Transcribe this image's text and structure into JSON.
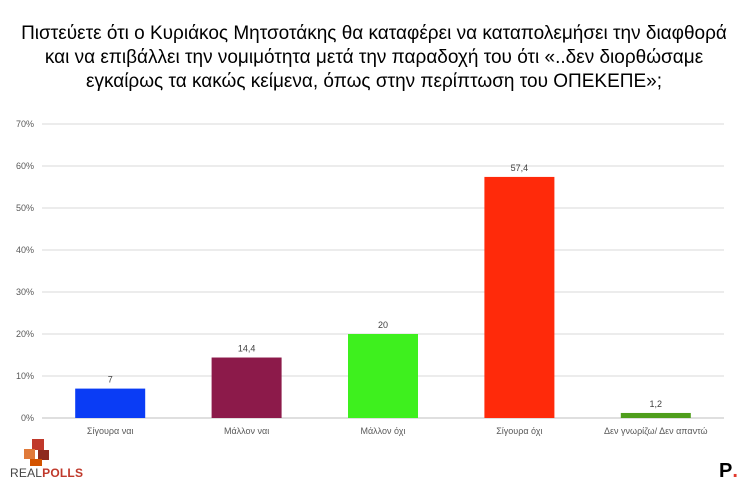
{
  "title_lines": [
    "Πιστεύετε ότι ο Κυριάκος Μητσοτάκης θα καταφέρει να καταπολεμήσει την διαφθορά",
    "και να επιβάλλει την νομιμότητα μετά την παραδοχή του ότι «..δεν διορθώσαμε",
    "εγκαίρως τα κακώς κείμενα, όπως στην περίπτωση του ΟΠΕΚΕΠΕ»;"
  ],
  "chart_data": {
    "type": "bar",
    "title": "Πιστεύετε ότι ο Κυριάκος Μητσοτάκης θα καταφέρει να καταπολεμήσει την διαφθορά και να επιβάλλει την νομιμότητα μετά την παραδοχή του ότι «..δεν διορθώσαμε εγκαίρως τα κακώς κείμενα, όπως στην περίπτωση του ΟΠΕΚΕΠΕ»;",
    "categories": [
      "Σίγουρα ναι",
      "Μάλλον ναι",
      "Μάλλον όχι",
      "Σίγουρα όχι",
      "Δεν γνωρίζω/ Δεν απαντώ"
    ],
    "values": [
      7,
      14.4,
      20,
      57.4,
      1.2
    ],
    "data_labels": [
      "7",
      "14,4",
      "20",
      "57,4",
      "1,2"
    ],
    "colors": [
      "#0a3cf5",
      "#8c1a4a",
      "#3ef01e",
      "#ff2a0a",
      "#4f9e1c"
    ],
    "ylim": [
      0,
      70
    ],
    "yticks": [
      0,
      10,
      20,
      30,
      40,
      50,
      60,
      70
    ],
    "ytick_labels": [
      "0%",
      "10%",
      "20%",
      "30%",
      "40%",
      "50%",
      "60%",
      "70%"
    ],
    "grid": true,
    "xlabel": "",
    "ylabel": ""
  },
  "logo": {
    "left": "REAL",
    "right": "POLLS"
  },
  "brand": {
    "letter": "P",
    "dot": "."
  }
}
